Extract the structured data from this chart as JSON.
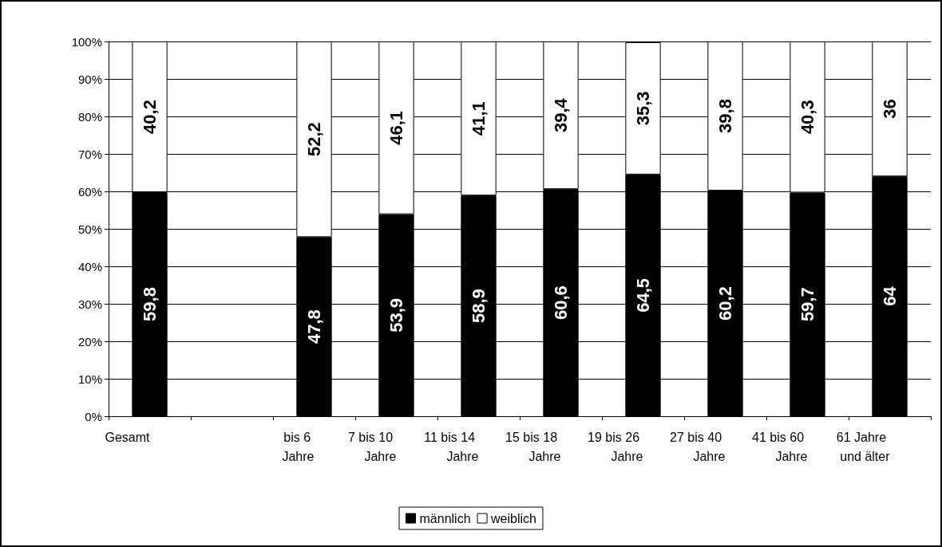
{
  "chart_data": {
    "type": "bar",
    "stacked": true,
    "categories": [
      "Gesamt",
      null,
      "bis 6 Jahre",
      "7 bis 10 Jahre",
      "11 bis 14 Jahre",
      "15 bis 18 Jahre",
      "19 bis 26 Jahre",
      "27 bis 40 Jahre",
      "41 bis 60 Jahre",
      "61 Jahre und älter"
    ],
    "series": [
      {
        "name": "männlich",
        "color": "#000000",
        "values": [
          59.8,
          null,
          47.8,
          53.9,
          58.9,
          60.6,
          64.5,
          60.2,
          59.7,
          64
        ],
        "value_labels": [
          "59,8",
          null,
          "47,8",
          "53,9",
          "58,9",
          "60,6",
          "64,5",
          "60,2",
          "59,7",
          "64"
        ]
      },
      {
        "name": "weiblich",
        "color": "#ffffff",
        "values": [
          40.2,
          null,
          52.2,
          46.1,
          41.1,
          39.4,
          35.3,
          39.8,
          40.3,
          36
        ],
        "value_labels": [
          "40,2",
          null,
          "52,2",
          "46,1",
          "41,1",
          "39,4",
          "35,3",
          "39,8",
          "40,3",
          "36"
        ]
      }
    ],
    "ylim": [
      0,
      100
    ],
    "yticks": [
      {
        "value": 0,
        "label": "0%"
      },
      {
        "value": 10,
        "label": "10%"
      },
      {
        "value": 20,
        "label": "20%"
      },
      {
        "value": 30,
        "label": "30%"
      },
      {
        "value": 40,
        "label": "40%"
      },
      {
        "value": 50,
        "label": "50%"
      },
      {
        "value": 60,
        "label": "60%"
      },
      {
        "value": 70,
        "label": "70%"
      },
      {
        "value": 80,
        "label": "80%"
      },
      {
        "value": 90,
        "label": "90%"
      },
      {
        "value": 100,
        "label": "100%"
      }
    ],
    "grid": "y",
    "legend": "bottom"
  }
}
